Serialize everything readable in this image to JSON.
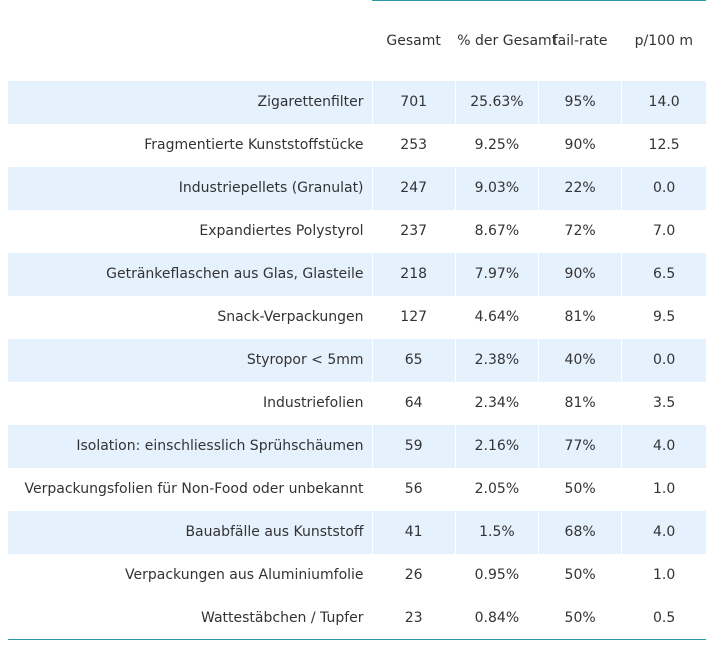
{
  "table": {
    "columns": [
      "",
      "Gesamt",
      "% der Gesamt",
      "fail-rate",
      "p/100 m"
    ],
    "rows": [
      {
        "label": "Zigarettenfilter",
        "gesamt": "701",
        "pct": "25.63%",
        "fail": "95%",
        "p100": "14.0"
      },
      {
        "label": "Fragmentierte Kunststoffstücke",
        "gesamt": "253",
        "pct": "9.25%",
        "fail": "90%",
        "p100": "12.5"
      },
      {
        "label": "Industriepellets (Granulat)",
        "gesamt": "247",
        "pct": "9.03%",
        "fail": "22%",
        "p100": "0.0"
      },
      {
        "label": "Expandiertes Polystyrol",
        "gesamt": "237",
        "pct": "8.67%",
        "fail": "72%",
        "p100": "7.0"
      },
      {
        "label": "Getränkeflaschen aus Glas, Glasteile",
        "gesamt": "218",
        "pct": "7.97%",
        "fail": "90%",
        "p100": "6.5"
      },
      {
        "label": "Snack-Verpackungen",
        "gesamt": "127",
        "pct": "4.64%",
        "fail": "81%",
        "p100": "9.5"
      },
      {
        "label": "Styropor < 5mm",
        "gesamt": "65",
        "pct": "2.38%",
        "fail": "40%",
        "p100": "0.0"
      },
      {
        "label": "Industriefolien",
        "gesamt": "64",
        "pct": "2.34%",
        "fail": "81%",
        "p100": "3.5"
      },
      {
        "label": "Isolation: einschliesslich Sprühschäumen",
        "gesamt": "59",
        "pct": "2.16%",
        "fail": "77%",
        "p100": "4.0"
      },
      {
        "label": "Verpackungsfolien für Non-Food oder unbekannt",
        "gesamt": "56",
        "pct": "2.05%",
        "fail": "50%",
        "p100": "1.0"
      },
      {
        "label": "Bauabfälle aus Kunststoff",
        "gesamt": "41",
        "pct": "1.5%",
        "fail": "68%",
        "p100": "4.0"
      },
      {
        "label": "Verpackungen aus Aluminiumfolie",
        "gesamt": "26",
        "pct": "0.95%",
        "fail": "50%",
        "p100": "1.0"
      },
      {
        "label": "Wattestäbchen / Tupfer",
        "gesamt": "23",
        "pct": "0.84%",
        "fail": "50%",
        "p100": "0.5"
      }
    ]
  },
  "colors": {
    "stripe": "#e6f1fe",
    "rule": "#2a9aa4",
    "text": "#333333"
  }
}
